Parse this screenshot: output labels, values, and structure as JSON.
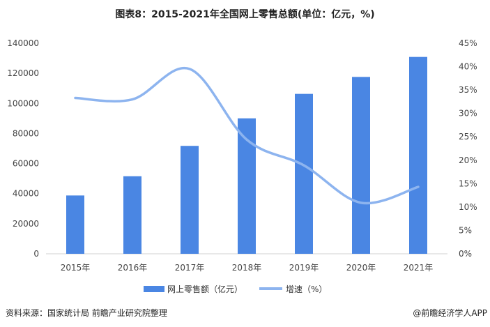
{
  "chart_data": {
    "type": "bar+line",
    "title": "图表8：2015-2021年全国网上零售总额(单位：亿元，%)",
    "categories": [
      "2015年",
      "2016年",
      "2017年",
      "2018年",
      "2019年",
      "2020年",
      "2021年"
    ],
    "series": [
      {
        "name": "网上零售额（亿元）",
        "type": "bar",
        "axis": "left",
        "color": "#4a86e3",
        "values": [
          38773,
          51556,
          71751,
          90065,
          106324,
          117601,
          130884
        ]
      },
      {
        "name": "增速（%）",
        "type": "line",
        "axis": "right",
        "color": "#8db4ef",
        "values": [
          33.3,
          33.0,
          39.5,
          24.4,
          18.9,
          10.9,
          14.3
        ]
      }
    ],
    "ylim_left": [
      0,
      140000
    ],
    "yticks_left": [
      "0",
      "20000",
      "40000",
      "60000",
      "80000",
      "100000",
      "120000",
      "140000"
    ],
    "ylim_right": [
      0,
      45
    ],
    "yticks_right": [
      "0%",
      "5%",
      "10%",
      "15%",
      "20%",
      "25%",
      "30%",
      "35%",
      "40%",
      "45%"
    ],
    "legend": "bottom",
    "grid": false
  },
  "footer": {
    "source": "资料来源：国家统计局 前瞻产业研究院整理",
    "brand": "@前瞻经济学人APP"
  }
}
